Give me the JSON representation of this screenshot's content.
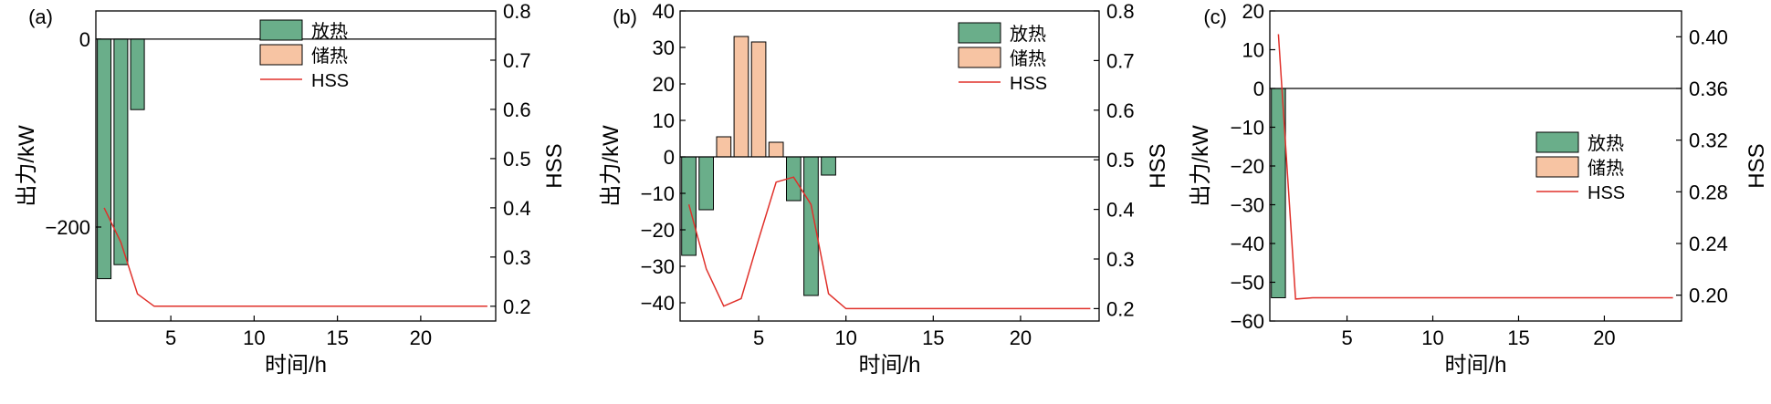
{
  "chart_data": [
    {
      "type": "bar",
      "panel_label": "(a)",
      "xlabel": "时间/h",
      "ylabel": "出力/kW",
      "y2label": "HSS",
      "xlim": [
        0.5,
        24.5
      ],
      "ylim": [
        -300,
        30
      ],
      "y2lim": [
        0.17,
        0.8
      ],
      "xticks": [
        5,
        10,
        15,
        20
      ],
      "yticks": [
        -200,
        0
      ],
      "y2ticks": [
        0.2,
        0.3,
        0.4,
        0.5,
        0.6,
        0.7,
        0.8
      ],
      "y2tick_labels": [
        "0.2",
        "0.3",
        "0.4",
        "0.5",
        "0.6",
        "0.7",
        "0.8"
      ],
      "legend_position": "top-center",
      "legend": [
        "放热",
        "储热",
        "HSS"
      ],
      "series": [
        {
          "name": "放热",
          "kind": "bar",
          "color": "#6aae8a",
          "x": [
            1,
            2,
            3
          ],
          "values": [
            -255,
            -240,
            -75
          ]
        },
        {
          "name": "储热",
          "kind": "bar",
          "color": "#f7c4a3",
          "x": [],
          "values": []
        },
        {
          "name": "HSS",
          "kind": "line",
          "axis": "right",
          "color": "#e0302a",
          "x": [
            1,
            2,
            3,
            4,
            5,
            6,
            7,
            8,
            9,
            10,
            11,
            12,
            13,
            14,
            15,
            16,
            17,
            18,
            19,
            20,
            21,
            22,
            23,
            24
          ],
          "values": [
            0.4,
            0.33,
            0.225,
            0.2,
            0.2,
            0.2,
            0.2,
            0.2,
            0.2,
            0.2,
            0.2,
            0.2,
            0.2,
            0.2,
            0.2,
            0.2,
            0.2,
            0.2,
            0.2,
            0.2,
            0.2,
            0.2,
            0.2,
            0.2
          ]
        }
      ]
    },
    {
      "type": "bar",
      "panel_label": "(b)",
      "xlabel": "时间/h",
      "ylabel": "出力/kW",
      "y2label": "HSS",
      "xlim": [
        0.5,
        24.5
      ],
      "ylim": [
        -45,
        40
      ],
      "y2lim": [
        0.175,
        0.8
      ],
      "xticks": [
        5,
        10,
        15,
        20
      ],
      "yticks": [
        -40,
        -30,
        -20,
        -10,
        0,
        10,
        20,
        30,
        40
      ],
      "y2ticks": [
        0.2,
        0.3,
        0.4,
        0.5,
        0.6,
        0.7,
        0.8
      ],
      "y2tick_labels": [
        "0.2",
        "0.3",
        "0.4",
        "0.5",
        "0.6",
        "0.7",
        "0.8"
      ],
      "legend_position": "top-right",
      "legend": [
        "放热",
        "储热",
        "HSS"
      ],
      "series": [
        {
          "name": "放热",
          "kind": "bar",
          "color": "#6aae8a",
          "x": [
            1,
            2,
            7,
            8,
            9
          ],
          "values": [
            -27,
            -14.5,
            -12,
            -38,
            -5
          ]
        },
        {
          "name": "储热",
          "kind": "bar",
          "color": "#f7c4a3",
          "x": [
            3,
            4,
            5,
            6
          ],
          "values": [
            5.5,
            33,
            31.5,
            4
          ]
        },
        {
          "name": "HSS",
          "kind": "line",
          "axis": "right",
          "color": "#e0302a",
          "x": [
            1,
            2,
            3,
            4,
            5,
            6,
            7,
            8,
            9,
            10,
            11,
            12,
            13,
            14,
            15,
            16,
            17,
            18,
            19,
            20,
            21,
            22,
            23,
            24
          ],
          "values": [
            0.41,
            0.28,
            0.205,
            0.22,
            0.34,
            0.455,
            0.465,
            0.41,
            0.23,
            0.2,
            0.2,
            0.2,
            0.2,
            0.2,
            0.2,
            0.2,
            0.2,
            0.2,
            0.2,
            0.2,
            0.2,
            0.2,
            0.2,
            0.2
          ]
        }
      ]
    },
    {
      "type": "bar",
      "panel_label": "(c)",
      "xlabel": "时间/h",
      "ylabel": "出力/kW",
      "y2label": "HSS",
      "xlim": [
        0.5,
        24.5
      ],
      "ylim": [
        -60,
        20
      ],
      "y2lim": [
        0.18,
        0.42
      ],
      "xticks": [
        5,
        10,
        15,
        20
      ],
      "yticks": [
        -60,
        -50,
        -40,
        -30,
        -20,
        -10,
        0,
        10,
        20
      ],
      "y2ticks": [
        0.2,
        0.24,
        0.28,
        0.32,
        0.36,
        0.4
      ],
      "y2tick_labels": [
        "0.20",
        "0.24",
        "0.28",
        "0.32",
        "0.36",
        "0.40"
      ],
      "legend_position": "center-right",
      "legend": [
        "放热",
        "储热",
        "HSS"
      ],
      "series": [
        {
          "name": "放热",
          "kind": "bar",
          "color": "#6aae8a",
          "x": [
            1
          ],
          "values": [
            -54
          ]
        },
        {
          "name": "储热",
          "kind": "bar",
          "color": "#f7c4a3",
          "x": [],
          "values": []
        },
        {
          "name": "HSS",
          "kind": "line",
          "axis": "right",
          "color": "#e0302a",
          "x": [
            1,
            2,
            3,
            4,
            5,
            6,
            7,
            8,
            9,
            10,
            11,
            12,
            13,
            14,
            15,
            16,
            17,
            18,
            19,
            20,
            21,
            22,
            23,
            24
          ],
          "values": [
            0.402,
            0.197,
            0.198,
            0.198,
            0.198,
            0.198,
            0.198,
            0.198,
            0.198,
            0.198,
            0.198,
            0.198,
            0.198,
            0.198,
            0.198,
            0.198,
            0.198,
            0.198,
            0.198,
            0.198,
            0.198,
            0.198,
            0.198,
            0.198
          ]
        }
      ]
    }
  ]
}
